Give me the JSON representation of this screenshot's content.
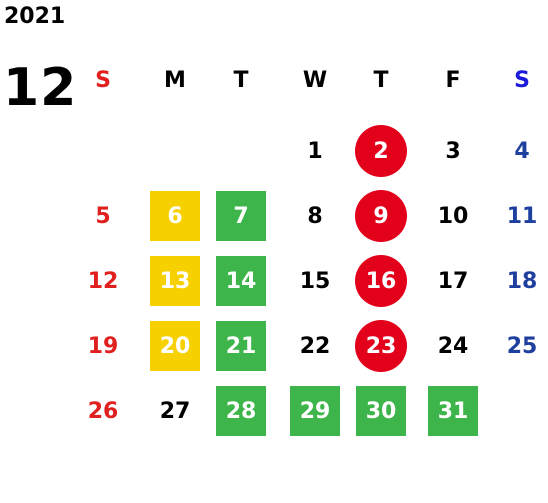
{
  "year": "2021",
  "month": "12",
  "colors": {
    "sunday": "#e0201e",
    "saturday": "#1e3f9e",
    "saturday_header": "#1a1adb",
    "weekday": "#000000",
    "yellow": "#f7d000",
    "green": "#3db54a",
    "red": "#e3001b",
    "on_fill": "#ffffff"
  },
  "weekdays": [
    "S",
    "M",
    "T",
    "W",
    "T",
    "F",
    "S"
  ],
  "weeks": [
    [
      null,
      null,
      null,
      {
        "day": "1"
      },
      {
        "day": "2",
        "mark": "red-circle"
      },
      {
        "day": "3"
      },
      {
        "day": "4"
      }
    ],
    [
      {
        "day": "5"
      },
      {
        "day": "6",
        "mark": "yellow-square"
      },
      {
        "day": "7",
        "mark": "green-square"
      },
      {
        "day": "8"
      },
      {
        "day": "9",
        "mark": "red-circle"
      },
      {
        "day": "10"
      },
      {
        "day": "11"
      }
    ],
    [
      {
        "day": "12"
      },
      {
        "day": "13",
        "mark": "yellow-square"
      },
      {
        "day": "14",
        "mark": "green-square"
      },
      {
        "day": "15"
      },
      {
        "day": "16",
        "mark": "red-circle"
      },
      {
        "day": "17"
      },
      {
        "day": "18"
      }
    ],
    [
      {
        "day": "19"
      },
      {
        "day": "20",
        "mark": "yellow-square"
      },
      {
        "day": "21",
        "mark": "green-square"
      },
      {
        "day": "22"
      },
      {
        "day": "23",
        "mark": "red-circle"
      },
      {
        "day": "24"
      },
      {
        "day": "25"
      }
    ],
    [
      {
        "day": "26"
      },
      {
        "day": "27"
      },
      {
        "day": "28",
        "mark": "green-square"
      },
      {
        "day": "29",
        "mark": "green-square"
      },
      {
        "day": "30",
        "mark": "green-square"
      },
      {
        "day": "31",
        "mark": "green-square"
      },
      null
    ]
  ]
}
